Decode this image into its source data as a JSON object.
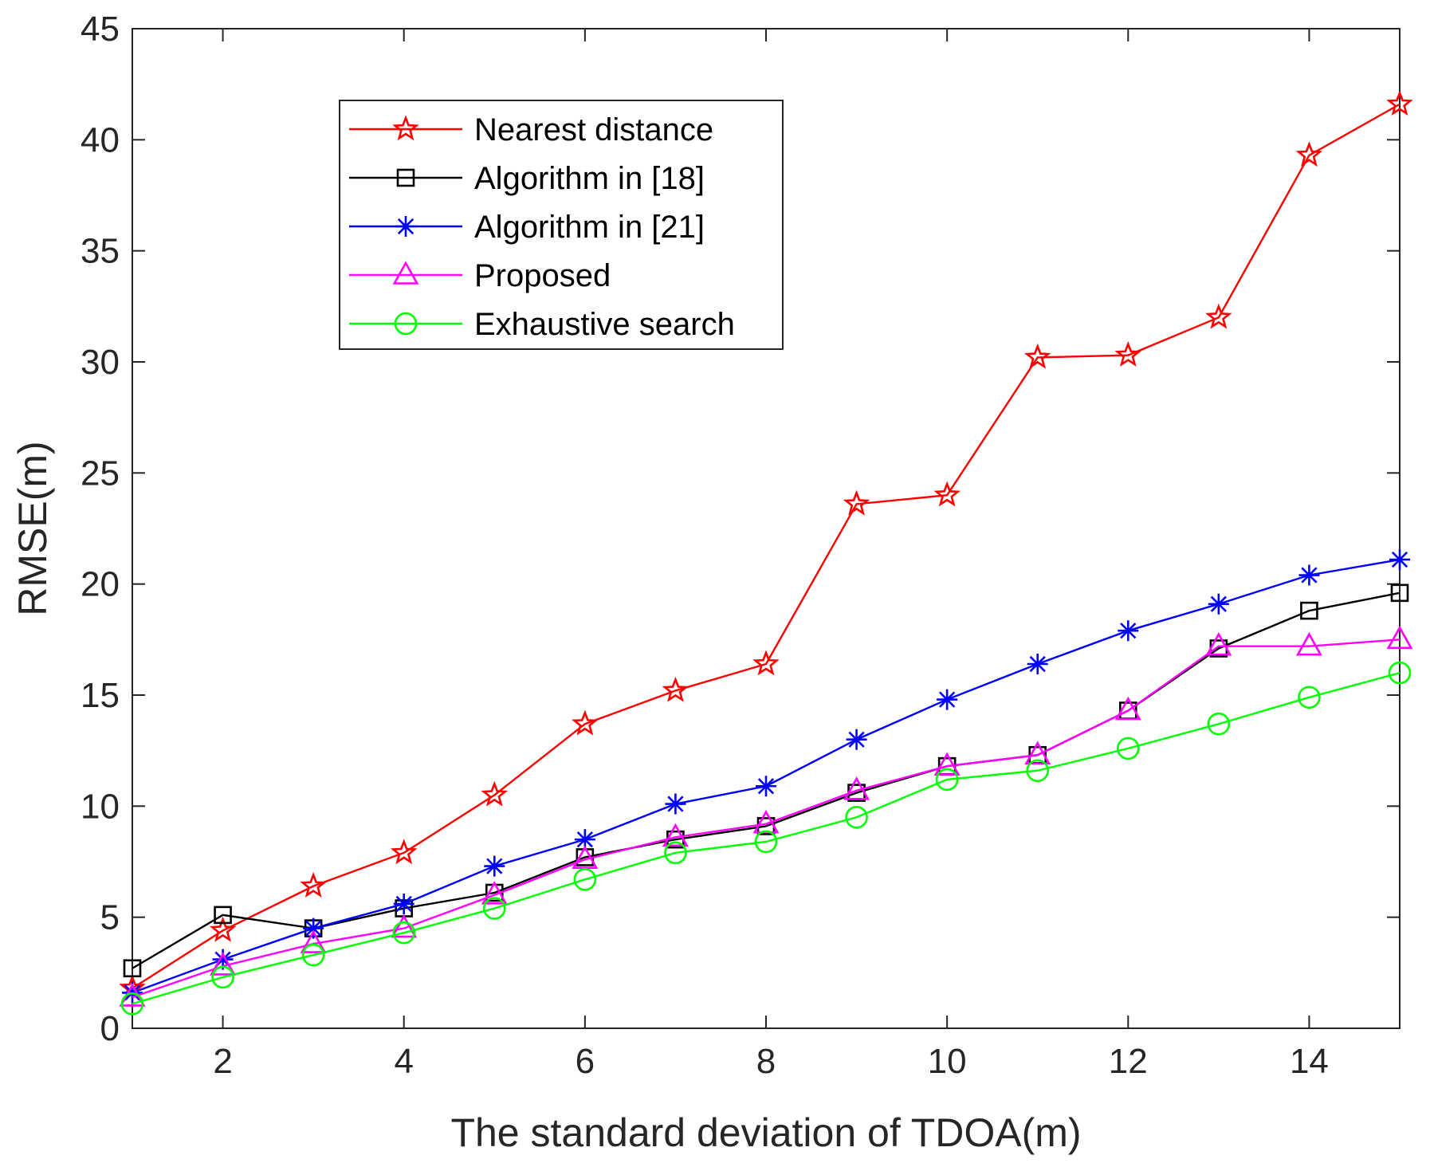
{
  "chart_data": {
    "type": "line",
    "title": "",
    "xlabel": "The standard deviation of TDOA(m)",
    "ylabel": "RMSE(m)",
    "xlim": [
      1,
      15
    ],
    "ylim": [
      0,
      45
    ],
    "xticks": [
      2,
      4,
      6,
      8,
      10,
      12,
      14
    ],
    "yticks": [
      0,
      5,
      10,
      15,
      20,
      25,
      30,
      35,
      40,
      45
    ],
    "grid": false,
    "legend_position": "top-left-center",
    "x": [
      1,
      2,
      3,
      4,
      5,
      6,
      7,
      8,
      9,
      10,
      11,
      12,
      13,
      14,
      15
    ],
    "series": [
      {
        "name": "Nearest distance",
        "color": "#ff0000",
        "marker": "star",
        "values": [
          1.8,
          4.4,
          6.4,
          7.9,
          10.5,
          13.7,
          15.2,
          16.4,
          23.6,
          24.0,
          30.2,
          30.3,
          32.0,
          39.3,
          41.6
        ]
      },
      {
        "name": "Algorithm in [18]",
        "color": "#000000",
        "marker": "square",
        "values": [
          2.7,
          5.1,
          4.5,
          5.4,
          6.1,
          7.7,
          8.5,
          9.1,
          10.6,
          11.8,
          12.3,
          14.3,
          17.1,
          18.8,
          19.6
        ]
      },
      {
        "name": "Algorithm in [21]",
        "color": "#0000ff",
        "marker": "asterisk",
        "values": [
          1.6,
          3.1,
          4.5,
          5.6,
          7.3,
          8.5,
          10.1,
          10.9,
          13.0,
          14.8,
          16.4,
          17.9,
          19.1,
          20.4,
          21.1
        ]
      },
      {
        "name": "Proposed",
        "color": "#ff00ff",
        "marker": "triangle",
        "values": [
          1.4,
          2.8,
          3.8,
          4.5,
          6.0,
          7.6,
          8.6,
          9.2,
          10.7,
          11.8,
          12.3,
          14.3,
          17.2,
          17.2,
          17.5
        ]
      },
      {
        "name": "Exhaustive search",
        "color": "#00ff00",
        "marker": "circle",
        "values": [
          1.1,
          2.3,
          3.3,
          4.3,
          5.4,
          6.7,
          7.9,
          8.4,
          9.5,
          11.2,
          11.6,
          12.6,
          13.7,
          14.9,
          16.0
        ]
      }
    ]
  }
}
